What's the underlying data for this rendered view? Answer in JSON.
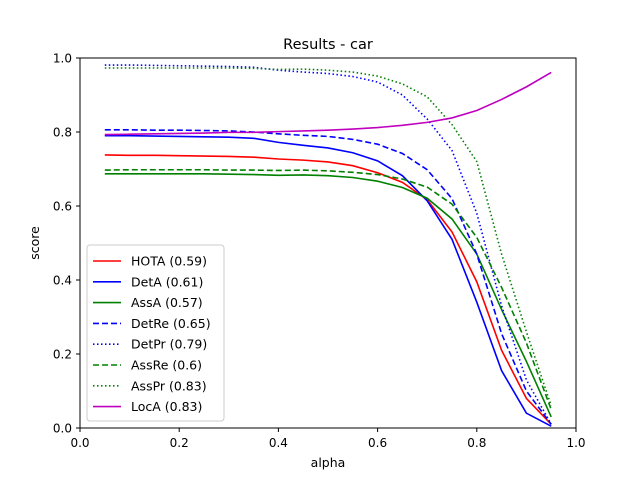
{
  "chart_data": {
    "type": "line",
    "title": "Results - car",
    "xlabel": "alpha",
    "ylabel": "score",
    "xlim": [
      0.0,
      1.0
    ],
    "ylim": [
      0.0,
      1.0
    ],
    "xticks": [
      "0.0",
      "0.2",
      "0.4",
      "0.6",
      "0.8",
      "1.0"
    ],
    "yticks": [
      "0.0",
      "0.2",
      "0.4",
      "0.6",
      "0.8",
      "1.0"
    ],
    "grid": false,
    "legend_position": "lower-left",
    "x": [
      0.05,
      0.1,
      0.15,
      0.2,
      0.25,
      0.3,
      0.35,
      0.4,
      0.45,
      0.5,
      0.55,
      0.6,
      0.65,
      0.7,
      0.75,
      0.8,
      0.85,
      0.9,
      0.95
    ],
    "series": [
      {
        "name": "HOTA (0.59)",
        "color": "#ff0000",
        "dash": "solid",
        "values": [
          0.738,
          0.737,
          0.737,
          0.736,
          0.735,
          0.734,
          0.732,
          0.727,
          0.724,
          0.719,
          0.709,
          0.69,
          0.664,
          0.617,
          0.53,
          0.395,
          0.21,
          0.08,
          0.01
        ]
      },
      {
        "name": "DetA (0.61)",
        "color": "#0000ff",
        "dash": "solid",
        "values": [
          0.79,
          0.79,
          0.789,
          0.788,
          0.787,
          0.786,
          0.783,
          0.772,
          0.764,
          0.757,
          0.744,
          0.722,
          0.682,
          0.614,
          0.51,
          0.34,
          0.155,
          0.04,
          0.005
        ]
      },
      {
        "name": "AssA (0.57)",
        "color": "#008000",
        "dash": "solid",
        "values": [
          0.687,
          0.687,
          0.687,
          0.687,
          0.687,
          0.686,
          0.685,
          0.683,
          0.684,
          0.682,
          0.677,
          0.667,
          0.65,
          0.621,
          0.565,
          0.47,
          0.32,
          0.18,
          0.03
        ]
      },
      {
        "name": "DetRe (0.65)",
        "color": "#0000ff",
        "dash": "dashed",
        "values": [
          0.806,
          0.806,
          0.805,
          0.805,
          0.804,
          0.803,
          0.8,
          0.795,
          0.791,
          0.788,
          0.78,
          0.767,
          0.742,
          0.698,
          0.62,
          0.47,
          0.255,
          0.1,
          0.01
        ]
      },
      {
        "name": "DetPr (0.79)",
        "color": "#0000ff",
        "dash": "dotted",
        "values": [
          0.981,
          0.981,
          0.98,
          0.979,
          0.978,
          0.977,
          0.975,
          0.967,
          0.962,
          0.958,
          0.95,
          0.935,
          0.9,
          0.835,
          0.75,
          0.58,
          0.33,
          0.13,
          0.01
        ]
      },
      {
        "name": "AssRe (0.6)",
        "color": "#008000",
        "dash": "dashed",
        "values": [
          0.697,
          0.698,
          0.698,
          0.698,
          0.698,
          0.697,
          0.697,
          0.696,
          0.697,
          0.695,
          0.691,
          0.685,
          0.673,
          0.651,
          0.605,
          0.515,
          0.38,
          0.23,
          0.05
        ]
      },
      {
        "name": "AssPr (0.83)",
        "color": "#008000",
        "dash": "dotted",
        "values": [
          0.973,
          0.973,
          0.973,
          0.973,
          0.973,
          0.973,
          0.972,
          0.969,
          0.97,
          0.967,
          0.962,
          0.951,
          0.93,
          0.895,
          0.82,
          0.72,
          0.47,
          0.26,
          0.06
        ]
      },
      {
        "name": "LocA (0.83)",
        "color": "#bf00bf",
        "dash": "solid",
        "values": [
          0.793,
          0.794,
          0.795,
          0.796,
          0.797,
          0.799,
          0.799,
          0.801,
          0.803,
          0.805,
          0.808,
          0.812,
          0.818,
          0.826,
          0.838,
          0.858,
          0.888,
          0.922,
          0.961
        ]
      }
    ]
  }
}
